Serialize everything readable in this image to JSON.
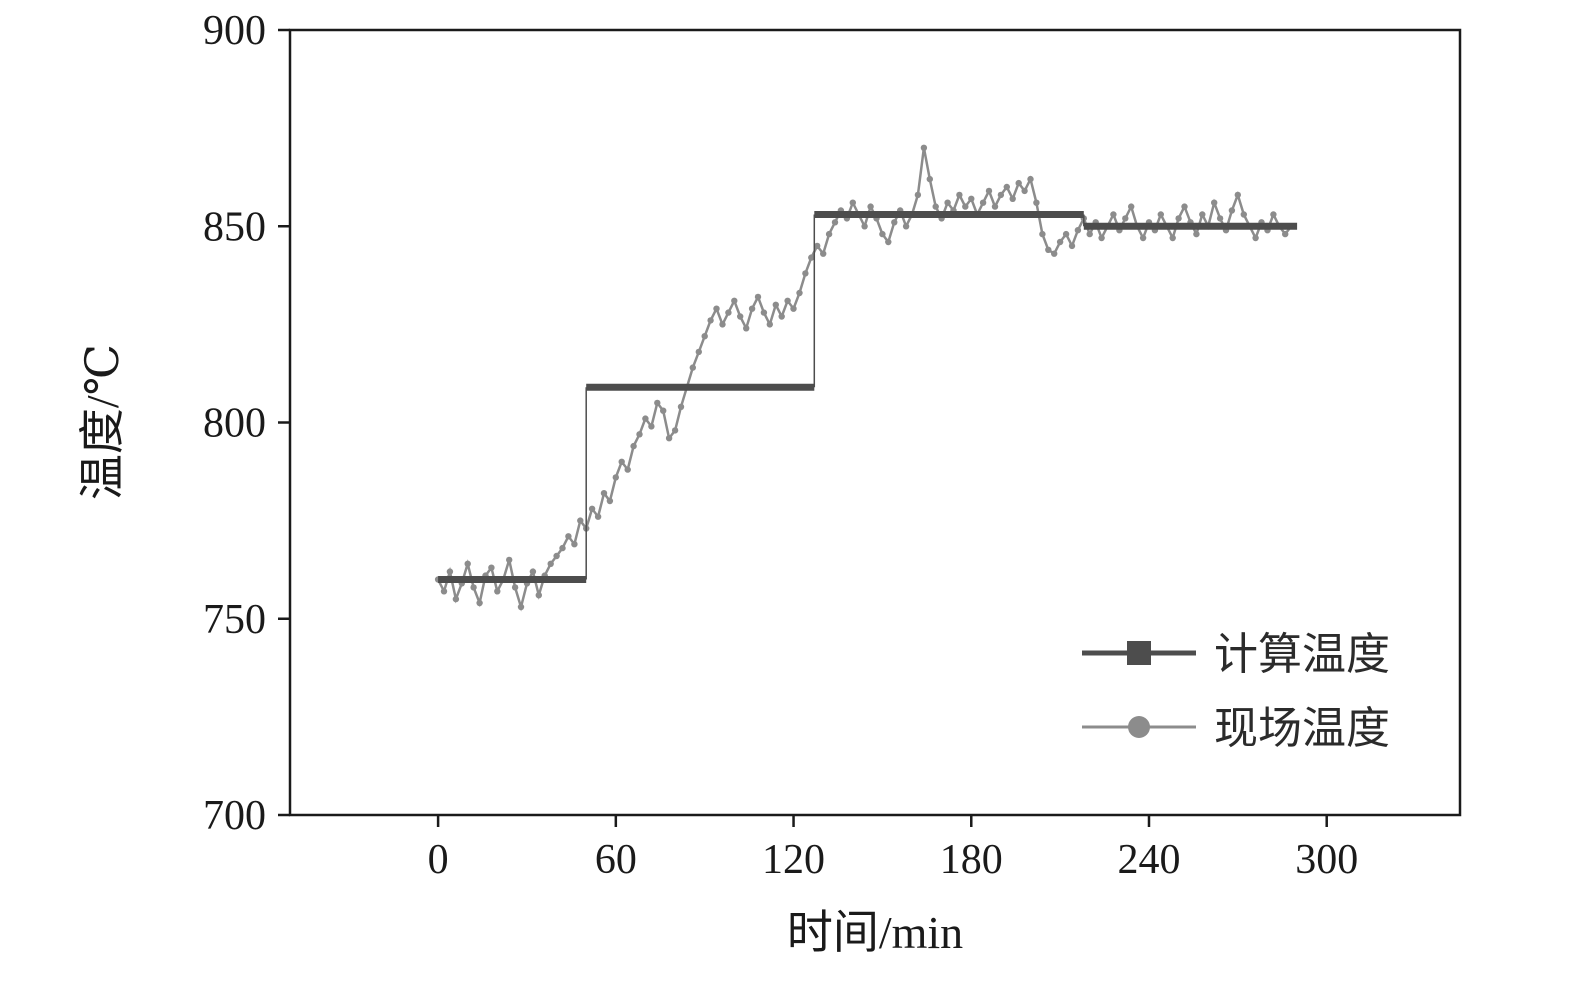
{
  "figure": {
    "background": "#ffffff",
    "frame_color": "#1a1a1a"
  },
  "chart_data": {
    "type": "line",
    "title": "",
    "xlabel": "时间/min",
    "ylabel": "温度/℃",
    "xlim": [
      -50,
      345
    ],
    "ylim": [
      700,
      900
    ],
    "x_ticks": [
      0,
      60,
      120,
      180,
      240,
      300
    ],
    "y_ticks": [
      700,
      750,
      800,
      850,
      900
    ],
    "grid": false,
    "legend_position": "lower right",
    "series": [
      {
        "name": "计算温度",
        "type": "step",
        "color": "#4d4d4d",
        "line_width": 7,
        "connector_width": 1.5,
        "marker": "square",
        "steps": [
          {
            "x_start": 0,
            "x_end": 50,
            "y": 760
          },
          {
            "x_start": 50,
            "x_end": 127,
            "y": 809
          },
          {
            "x_start": 127,
            "x_end": 218,
            "y": 853
          },
          {
            "x_start": 218,
            "x_end": 290,
            "y": 850
          }
        ]
      },
      {
        "name": "现场温度",
        "type": "noisy-line",
        "color": "#8c8c8c",
        "line_width": 2.5,
        "marker": "circle",
        "marker_radius": 3.2,
        "x_start": 0,
        "x_step": 2,
        "values": [
          760,
          757,
          762,
          755,
          759,
          764,
          758,
          754,
          761,
          763,
          757,
          760,
          765,
          758,
          753,
          759,
          762,
          756,
          761,
          764,
          766,
          768,
          771,
          769,
          775,
          773,
          778,
          776,
          782,
          780,
          786,
          790,
          788,
          794,
          797,
          801,
          799,
          805,
          803,
          796,
          798,
          804,
          809,
          814,
          818,
          822,
          826,
          829,
          825,
          828,
          831,
          827,
          824,
          829,
          832,
          828,
          825,
          830,
          827,
          831,
          829,
          833,
          838,
          842,
          845,
          843,
          848,
          851,
          854,
          852,
          856,
          853,
          850,
          855,
          852,
          848,
          846,
          851,
          854,
          850,
          853,
          858,
          870,
          862,
          855,
          852,
          856,
          854,
          858,
          855,
          857,
          853,
          856,
          859,
          855,
          858,
          860,
          857,
          861,
          859,
          862,
          856,
          848,
          844,
          843,
          846,
          848,
          845,
          849,
          852,
          848,
          851,
          847,
          850,
          853,
          849,
          852,
          855,
          850,
          847,
          851,
          849,
          853,
          850,
          847,
          852,
          855,
          851,
          848,
          853,
          850,
          856,
          852,
          849,
          854,
          858,
          853,
          850,
          847,
          851,
          849,
          853,
          850,
          848,
          850
        ]
      }
    ]
  },
  "legend": {
    "entries": [
      {
        "label": "计算温度",
        "marker": "square",
        "color": "#4d4d4d"
      },
      {
        "label": "现场温度",
        "marker": "circle",
        "color": "#8c8c8c"
      }
    ]
  }
}
